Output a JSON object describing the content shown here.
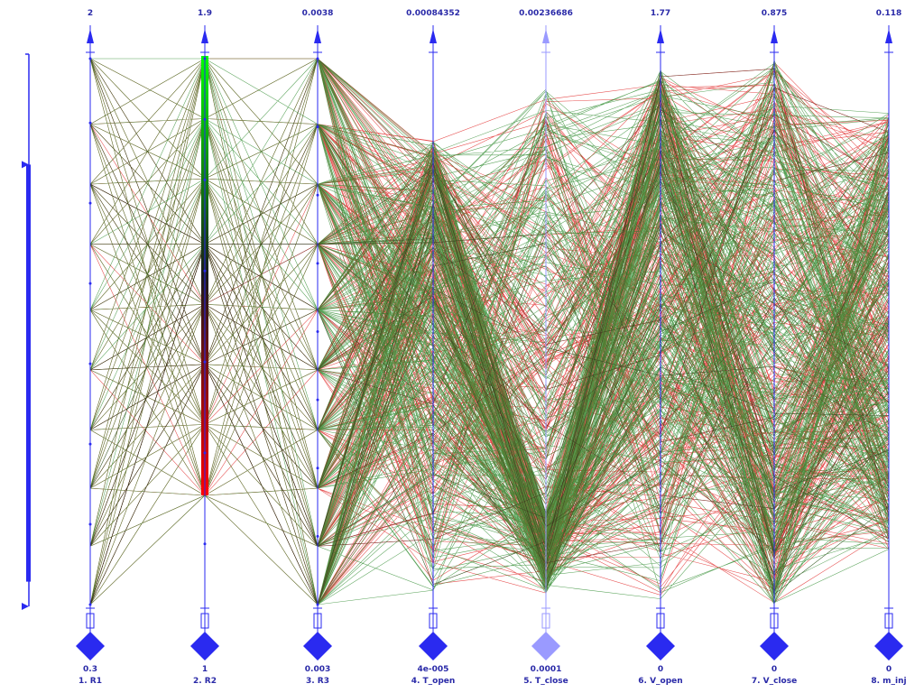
{
  "chart_data": {
    "type": "parallel-coordinates",
    "title": "",
    "axes": [
      {
        "name": "1. R1",
        "max_label": "2",
        "min_label": "0.3",
        "max": 2,
        "min": 0.3,
        "ticks": [
          0.3,
          0.55,
          0.8,
          1.05,
          1.3,
          1.55,
          1.8,
          2
        ]
      },
      {
        "name": "2. R2",
        "max_label": "1.9",
        "min_label": "1",
        "max": 1.9,
        "min": 1,
        "ticks": [
          1.1,
          1.25,
          1.4,
          1.55,
          1.7,
          1.8,
          1.9
        ]
      },
      {
        "name": "3. R3",
        "max_label": "0.0038",
        "min_label": "0.003",
        "max": 0.0038,
        "min": 0.003,
        "ticks": [
          0.003,
          0.0031,
          0.0032,
          0.0033,
          0.0034,
          0.0035,
          0.0036,
          0.0037,
          0.0038
        ]
      },
      {
        "name": "4. T_open",
        "max_label": "0.00084352",
        "min_label": "4e-005",
        "max": 0.00084352,
        "min": 4e-05
      },
      {
        "name": "5. T_close",
        "max_label": "0.00236686",
        "min_label": "0.0001",
        "max": 0.00236686,
        "min": 0.0001
      },
      {
        "name": "6. V_open",
        "max_label": "1.77",
        "min_label": "0",
        "max": 1.77,
        "min": 0
      },
      {
        "name": "7. V_close",
        "max_label": "0.875",
        "min_label": "0",
        "max": 0.875,
        "min": 0
      },
      {
        "name": "8. m_inj",
        "max_label": "0.118",
        "min_label": "0",
        "max": 0.118,
        "min": 0
      }
    ],
    "highlighted_axis": "5. T_close",
    "color_by": "2. R2",
    "color_scale": [
      "#ff0000",
      "#1a1a1a",
      "#00ff00"
    ],
    "line_count": 600,
    "line_colors": [
      "#cc1a1a",
      "#2e8b2e"
    ],
    "brush_range": [
      0.2,
      0.8
    ]
  },
  "colors": {
    "axis": "#2a2af0",
    "axis_dim": "#9a9aff",
    "label": "#2a2aa8",
    "red": "#e02020",
    "green": "#2e8b2e"
  }
}
